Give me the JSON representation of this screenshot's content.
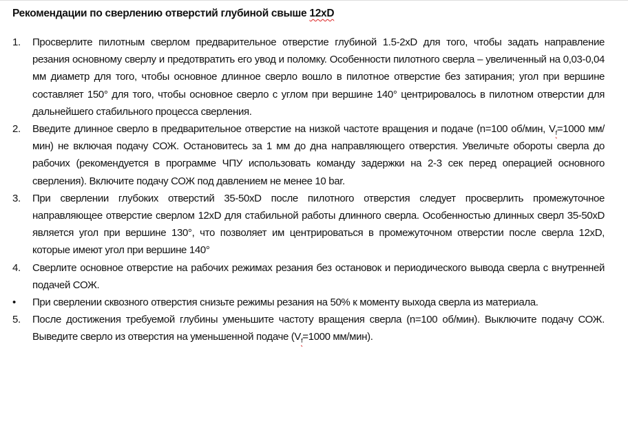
{
  "title": {
    "text": "Рекомендации по сверлению отверстий глубиной свыше ",
    "flagged": "12xD"
  },
  "items": [
    {
      "marker": "1.",
      "text": "Просверлите пилотным сверлом предварительное отверстие глубиной 1.5-2xD для того, чтобы задать направление резания основному сверлу и предотвратить его увод и поломку. Особенности пилотного сверла – увеличенный на 0,03-0,04 мм диаметр для того, чтобы основное длинное сверло вошло в пилотное отверстие без затирания; угол при вершине составляет 150° для того, чтобы основное сверло с углом при вершине 140° центрировалось в пилотном отверстии для дальнейшего стабильного процесса сверления."
    },
    {
      "marker": "2.",
      "before": "Введите длинное сверло в предварительное отверстие на низкой частоте вращения и подаче (n=100 об/мин, V",
      "sub": "f",
      "after": "=1000 мм/мин) не включая подачу СОЖ. Остановитесь за 1 мм до дна направляющего отверстия. Увеличьте обороты сверла до рабочих (рекомендуется в программе ЧПУ использовать команду задержки на 2-3 сек перед операцией основного сверления). Включите подачу СОЖ под давлением не менее 10 bar."
    },
    {
      "marker": "3.",
      "text": "При сверлении глубоких отверстий 35-50xD после пилотного отверстия следует просверлить промежуточное направляющее отверстие сверлом 12xD для стабильной работы длинного сверла. Особенностью длинных сверл 35-50xD является угол при вершине 130°, что позволяет им центрироваться в промежуточном отверстии после сверла 12xD, которые имеют угол при вершине 140°"
    },
    {
      "marker": "4.",
      "text": "Сверлите основное отверстие на рабочих режимах резания без остановок и периодического вывода сверла с внутренней подачей СОЖ."
    },
    {
      "marker": "•",
      "text": "При сверлении сквозного отверстия снизьте режимы резания на 50% к моменту выхода сверла из материала."
    },
    {
      "marker": "5.",
      "before": "После достижения требуемой глубины уменьшите частоту вращения сверла (n=100 об/мин). Выключите подачу СОЖ. Выведите сверло из отверстия на уменьшенной подаче (V",
      "sub": "f",
      "after": "=1000 мм/мин)."
    }
  ]
}
